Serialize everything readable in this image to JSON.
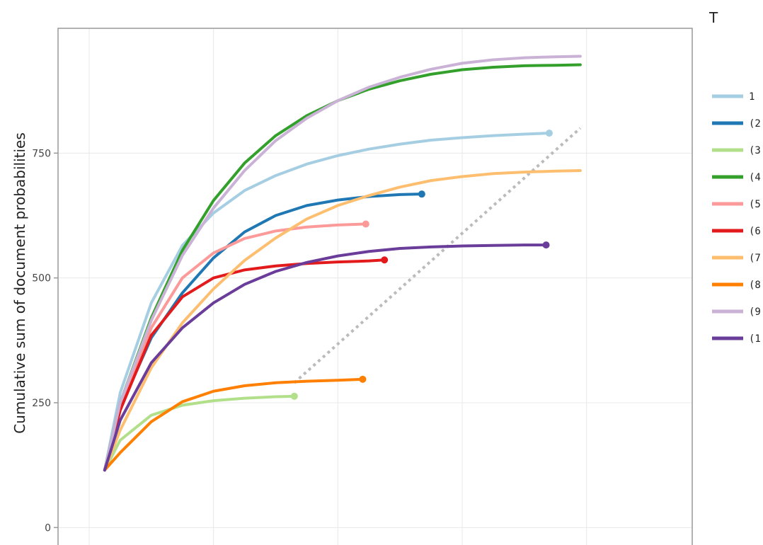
{
  "chart_data": {
    "type": "line",
    "title": "",
    "xlabel": "",
    "ylabel": "Cumulative sum of document probabilities",
    "ylim": [
      -35,
      1000
    ],
    "xlim": [
      0,
      10.2
    ],
    "yticks": [
      0,
      250,
      500,
      750
    ],
    "ytick_labels": [
      "0",
      "250",
      "500",
      "750"
    ],
    "x_gridlines": [
      0.5,
      2.5,
      4.5,
      6.5,
      8.5
    ],
    "grid": true,
    "legend_title": "T",
    "legend_position": "right",
    "reference_line": {
      "style": "dotted",
      "color": "#bbbbbb",
      "points": [
        [
          3.8,
          290
        ],
        [
          8.4,
          800
        ]
      ]
    },
    "series": [
      {
        "name": "1",
        "color": "#a6cee3",
        "end_marker": true,
        "x": [
          0.75,
          1.0,
          1.5,
          2.0,
          2.5,
          3.0,
          3.5,
          4.0,
          4.5,
          5.0,
          5.5,
          6.0,
          6.5,
          7.0,
          7.5,
          7.9
        ],
        "y": [
          115,
          270,
          450,
          565,
          630,
          675,
          705,
          728,
          745,
          758,
          768,
          776,
          781,
          785,
          788,
          790
        ]
      },
      {
        "name": "(2",
        "color": "#1f78b4",
        "end_marker": true,
        "x": [
          0.75,
          1.0,
          1.5,
          2.0,
          2.5,
          3.0,
          3.5,
          4.0,
          4.5,
          5.0,
          5.5,
          5.85
        ],
        "y": [
          115,
          240,
          380,
          470,
          540,
          592,
          625,
          645,
          656,
          663,
          667,
          668
        ]
      },
      {
        "name": "(3",
        "color": "#b2df8a",
        "end_marker": true,
        "x": [
          0.75,
          1.0,
          1.5,
          2.0,
          2.5,
          3.0,
          3.5,
          3.8
        ],
        "y": [
          115,
          175,
          225,
          245,
          254,
          259,
          262,
          263
        ]
      },
      {
        "name": "(4",
        "color": "#33a02c",
        "end_marker": false,
        "x": [
          0.75,
          1.0,
          1.5,
          2.0,
          2.5,
          3.0,
          3.5,
          4.0,
          4.5,
          5.0,
          5.5,
          6.0,
          6.5,
          7.0,
          7.5,
          8.0,
          8.4
        ],
        "y": [
          115,
          250,
          420,
          555,
          655,
          730,
          785,
          825,
          855,
          878,
          895,
          908,
          917,
          922,
          925,
          926,
          927
        ]
      },
      {
        "name": "(5",
        "color": "#fb9a99",
        "end_marker": true,
        "x": [
          0.75,
          1.0,
          1.5,
          2.0,
          2.5,
          3.0,
          3.5,
          4.0,
          4.5,
          4.95
        ],
        "y": [
          115,
          235,
          400,
          500,
          550,
          579,
          594,
          602,
          606,
          608
        ]
      },
      {
        "name": "(6",
        "color": "#e31a1c",
        "end_marker": true,
        "x": [
          0.75,
          1.0,
          1.5,
          2.0,
          2.5,
          3.0,
          3.5,
          4.0,
          4.5,
          5.0,
          5.25
        ],
        "y": [
          115,
          235,
          385,
          462,
          500,
          516,
          524,
          529,
          532,
          534,
          536
        ]
      },
      {
        "name": "(7",
        "color": "#fdbf6f",
        "end_marker": false,
        "x": [
          0.75,
          1.0,
          1.5,
          2.0,
          2.5,
          3.0,
          3.5,
          4.0,
          4.5,
          5.0,
          5.5,
          6.0,
          6.5,
          7.0,
          7.5,
          8.0,
          8.4
        ],
        "y": [
          115,
          195,
          320,
          410,
          478,
          535,
          580,
          618,
          645,
          665,
          682,
          695,
          703,
          709,
          712,
          714,
          715
        ]
      },
      {
        "name": "(8",
        "color": "#ff7f00",
        "end_marker": true,
        "x": [
          0.75,
          1.0,
          1.5,
          2.0,
          2.5,
          3.0,
          3.5,
          4.0,
          4.5,
          4.9
        ],
        "y": [
          115,
          150,
          212,
          252,
          273,
          284,
          290,
          293,
          295,
          297
        ]
      },
      {
        "name": "(9",
        "color": "#cab2d6",
        "end_marker": false,
        "x": [
          0.75,
          1.0,
          1.5,
          2.0,
          2.5,
          3.0,
          3.5,
          4.0,
          4.5,
          5.0,
          5.5,
          6.0,
          6.5,
          7.0,
          7.5,
          8.0,
          8.4
        ],
        "y": [
          115,
          250,
          415,
          545,
          640,
          715,
          775,
          820,
          855,
          882,
          902,
          918,
          930,
          937,
          941,
          943,
          944
        ]
      },
      {
        "name": "(1",
        "color": "#6a3d9a",
        "end_marker": true,
        "x": [
          0.75,
          1.0,
          1.5,
          2.0,
          2.5,
          3.0,
          3.5,
          4.0,
          4.5,
          5.0,
          5.5,
          6.0,
          6.5,
          7.0,
          7.5,
          7.85
        ],
        "y": [
          115,
          215,
          330,
          400,
          450,
          487,
          513,
          531,
          544,
          553,
          559,
          562,
          564,
          565,
          566,
          566
        ]
      }
    ]
  }
}
